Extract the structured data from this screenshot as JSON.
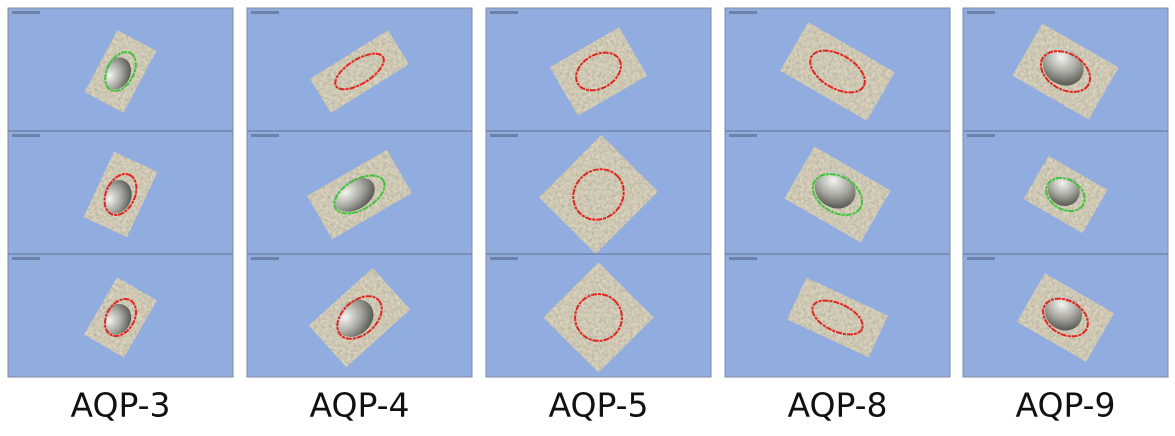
{
  "columns": [
    {
      "label": "AQP-3"
    },
    {
      "label": "AQP-4"
    },
    {
      "label": "AQP-5"
    },
    {
      "label": "AQP-8"
    },
    {
      "label": "AQP-9"
    }
  ]
}
